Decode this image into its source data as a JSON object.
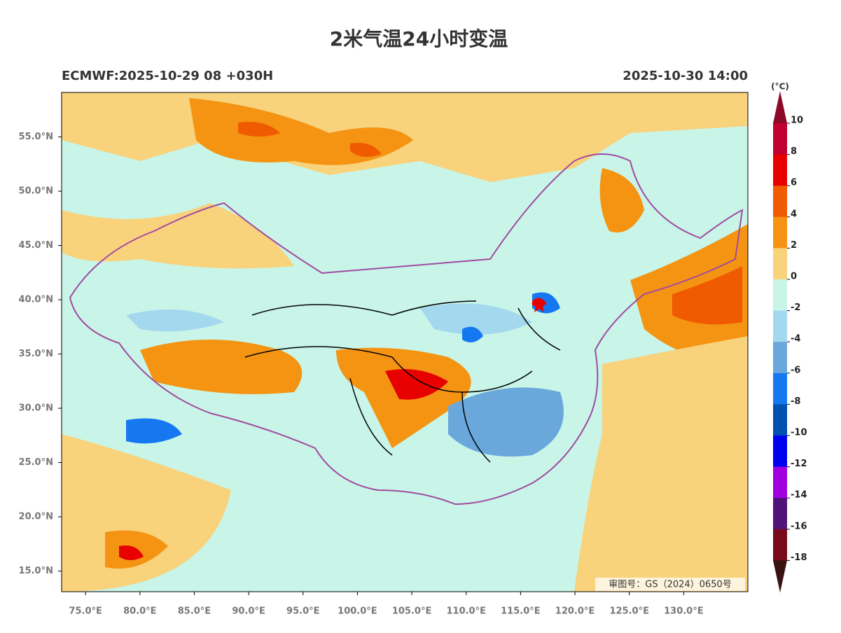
{
  "title": "2米气温24小时变温",
  "model_run": "ECMWF:2025-10-29 08 +030H",
  "valid_time": "2025-10-30 14:00",
  "map": {
    "lon_range": [
      72.8,
      135.9
    ],
    "lat_range": [
      13.1,
      59.1
    ],
    "lat_ticks": [
      {
        "value": 55,
        "label": "55.0°N"
      },
      {
        "value": 50,
        "label": "50.0°N"
      },
      {
        "value": 45,
        "label": "45.0°N"
      },
      {
        "value": 40,
        "label": "40.0°N"
      },
      {
        "value": 35,
        "label": "35.0°N"
      },
      {
        "value": 30,
        "label": "30.0°N"
      },
      {
        "value": 25,
        "label": "25.0°N"
      },
      {
        "value": 20,
        "label": "20.0°N"
      },
      {
        "value": 15,
        "label": "15.0°N"
      }
    ],
    "lon_ticks": [
      {
        "value": 75,
        "label": "75.0°E"
      },
      {
        "value": 80,
        "label": "80.0°E"
      },
      {
        "value": 85,
        "label": "85.0°E"
      },
      {
        "value": 90,
        "label": "90.0°E"
      },
      {
        "value": 95,
        "label": "95.0°E"
      },
      {
        "value": 100,
        "label": "100.0°E"
      },
      {
        "value": 105,
        "label": "105.0°E"
      },
      {
        "value": 110,
        "label": "110.0°E"
      },
      {
        "value": 115,
        "label": "115.0°E"
      },
      {
        "value": 120,
        "label": "120.0°E"
      },
      {
        "value": 125,
        "label": "125.0°E"
      },
      {
        "value": 130,
        "label": "130.0°E"
      }
    ],
    "review_number": "审图号：GS（2024）0650号"
  },
  "colorbar": {
    "unit": "(°C)",
    "ticks": [
      10,
      8,
      6,
      4,
      2,
      0,
      -2,
      -4,
      -6,
      -8,
      -10,
      -12,
      -14,
      -16,
      -18
    ],
    "over_color": "#8c0a28",
    "colors": [
      "#c0002e",
      "#e80000",
      "#f05a00",
      "#f59412",
      "#f9d27c",
      "#c8f5e8",
      "#a4d8ee",
      "#6aa8dc",
      "#1678f0",
      "#0050b0",
      "#0000f0",
      "#a000e0",
      "#501478",
      "#780a1a"
    ],
    "under_color": "#3a1212"
  }
}
